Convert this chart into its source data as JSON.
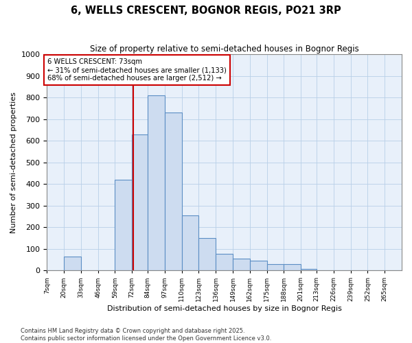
{
  "title": "6, WELLS CRESCENT, BOGNOR REGIS, PO21 3RP",
  "subtitle": "Size of property relative to semi-detached houses in Bognor Regis",
  "xlabel": "Distribution of semi-detached houses by size in Bognor Regis",
  "ylabel": "Number of semi-detached properties",
  "bins": [
    "7sqm",
    "20sqm",
    "33sqm",
    "46sqm",
    "59sqm",
    "72sqm",
    "84sqm",
    "97sqm",
    "110sqm",
    "123sqm",
    "136sqm",
    "149sqm",
    "162sqm",
    "175sqm",
    "188sqm",
    "201sqm",
    "213sqm",
    "226sqm",
    "239sqm",
    "252sqm",
    "265sqm"
  ],
  "bin_edges": [
    7,
    20,
    33,
    46,
    59,
    72,
    84,
    97,
    110,
    123,
    136,
    149,
    162,
    175,
    188,
    201,
    213,
    226,
    239,
    252,
    265,
    278
  ],
  "values": [
    0,
    65,
    0,
    0,
    420,
    630,
    810,
    730,
    255,
    150,
    75,
    55,
    45,
    30,
    30,
    5,
    0,
    0,
    0,
    0,
    0
  ],
  "property_size": 73,
  "property_label": "6 WELLS CRESCENT: 73sqm",
  "pct_smaller": 31,
  "pct_larger": 68,
  "n_smaller": 1133,
  "n_larger": 2512,
  "bar_color": "#cddcf0",
  "bar_edge_color": "#5b8ec4",
  "vline_color": "#cc0000",
  "annotation_box_color": "#cc0000",
  "grid_color": "#b8cfe8",
  "bg_color": "#e8f0fa",
  "ylim": [
    0,
    1000
  ],
  "yticks": [
    0,
    100,
    200,
    300,
    400,
    500,
    600,
    700,
    800,
    900,
    1000
  ],
  "footer1": "Contains HM Land Registry data © Crown copyright and database right 2025.",
  "footer2": "Contains public sector information licensed under the Open Government Licence v3.0."
}
